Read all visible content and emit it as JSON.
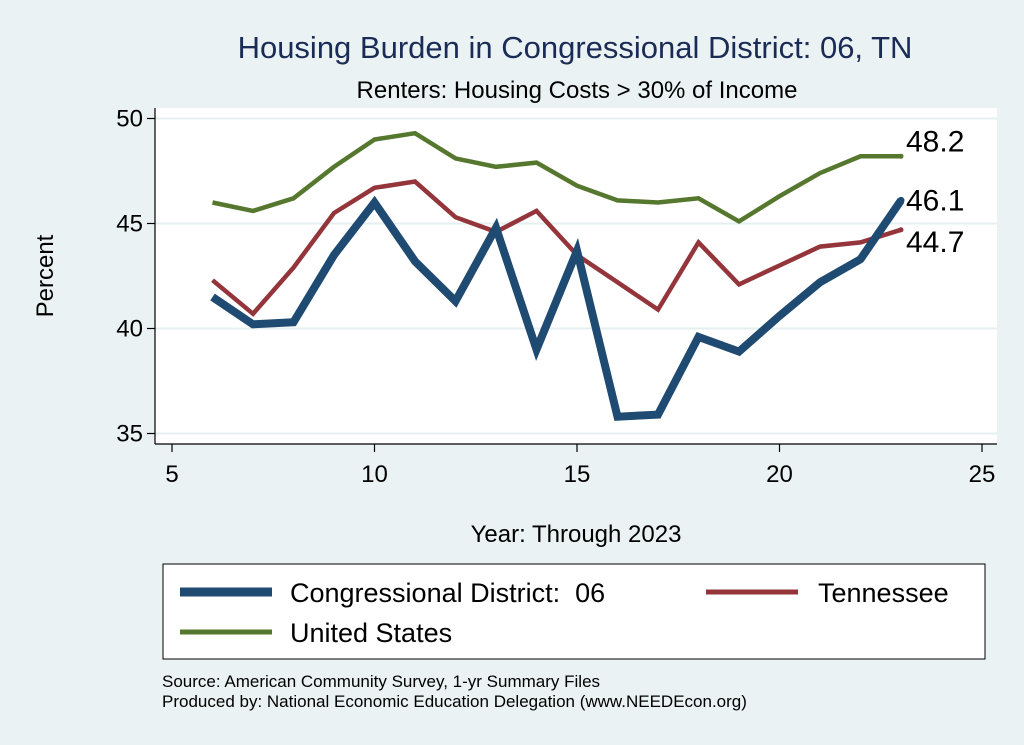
{
  "chart_data": {
    "type": "line",
    "title": "Housing Burden in Congressional District:  06, TN",
    "subtitle": "Renters: Housing Costs > 30% of Income",
    "xlabel": "Year: Through 2023",
    "ylabel": "Percent",
    "xlim": [
      5,
      25
    ],
    "ylim": [
      34.5,
      50.5
    ],
    "xticks": [
      5,
      10,
      15,
      20,
      25
    ],
    "yticks": [
      35,
      40,
      45,
      50
    ],
    "grid": true,
    "legend_position": "bottom",
    "x": [
      6,
      7,
      8,
      9,
      10,
      11,
      12,
      13,
      14,
      15,
      16,
      17,
      18,
      19,
      20,
      21,
      22,
      23
    ],
    "series": [
      {
        "name": "Congressional District:  06",
        "color": "#1f4a72",
        "values": [
          41.5,
          40.2,
          40.3,
          43.5,
          46.0,
          43.2,
          41.3,
          44.8,
          39.0,
          43.7,
          35.8,
          35.9,
          39.6,
          38.9,
          40.6,
          42.2,
          43.3,
          46.1
        ],
        "end_label": "46.1"
      },
      {
        "name": "Tennessee",
        "color": "#93353a",
        "values": [
          42.3,
          40.7,
          42.9,
          45.5,
          46.7,
          47.0,
          45.3,
          44.6,
          45.6,
          43.5,
          42.2,
          40.9,
          44.1,
          42.1,
          43.0,
          43.9,
          44.1,
          44.7
        ],
        "end_label": "44.7"
      },
      {
        "name": "United States",
        "color": "#56772e",
        "values": [
          46.0,
          45.6,
          46.2,
          47.7,
          49.0,
          49.3,
          48.1,
          47.7,
          47.9,
          46.8,
          46.1,
          46.0,
          46.2,
          45.1,
          46.3,
          47.4,
          48.2,
          48.2
        ],
        "end_label": "48.2"
      }
    ]
  },
  "footer": {
    "source": "Source: American Community Survey, 1-yr Summary Files",
    "produced_by": "Produced by: National Economic Education Delegation (www.NEEDEcon.org)"
  }
}
